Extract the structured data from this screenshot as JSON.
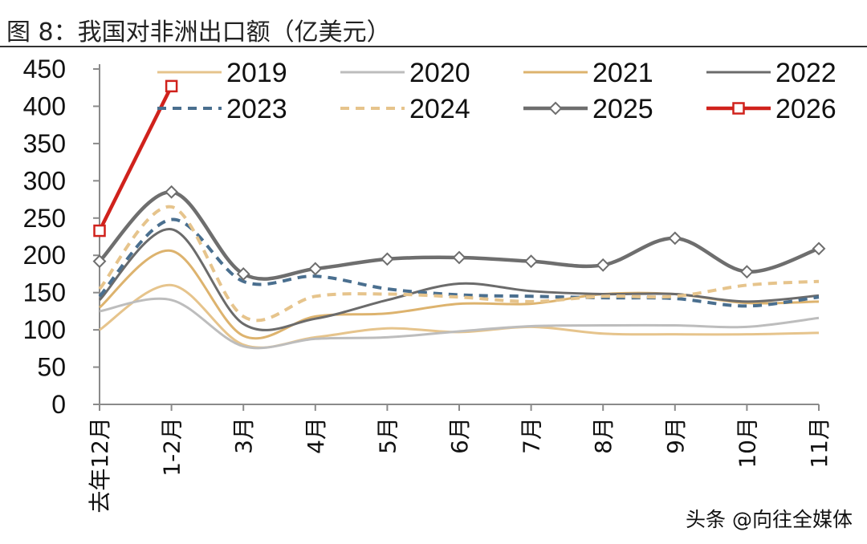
{
  "watermark": "头条 @向往全媒体",
  "chart_data": {
    "type": "line",
    "title": "图 8：我国对非洲出口额（亿美元）",
    "xlabel": "",
    "ylabel": "",
    "ylim": [
      0,
      450
    ],
    "yticks": [
      0,
      50,
      100,
      150,
      200,
      250,
      300,
      350,
      400,
      450
    ],
    "categories": [
      "去年12月",
      "1-2月",
      "3月",
      "4月",
      "5月",
      "6月",
      "7月",
      "8月",
      "9月",
      "10月",
      "11月"
    ],
    "legend_position": "top",
    "series": [
      {
        "name": "2019",
        "color": "#E6C48C",
        "style": "solid",
        "marker": "none",
        "values": [
          100,
          160,
          80,
          90,
          102,
          97,
          104,
          95,
          94,
          94,
          96
        ]
      },
      {
        "name": "2020",
        "color": "#BDBDBD",
        "style": "solid",
        "marker": "none",
        "values": [
          125,
          140,
          78,
          88,
          90,
          98,
          105,
          106,
          106,
          104,
          116
        ]
      },
      {
        "name": "2021",
        "color": "#DDB36E",
        "style": "solid",
        "marker": "none",
        "values": [
          130,
          206,
          92,
          118,
          122,
          135,
          135,
          148,
          148,
          136,
          138
        ]
      },
      {
        "name": "2022",
        "color": "#6B6B6B",
        "style": "solid",
        "marker": "none",
        "values": [
          140,
          235,
          108,
          115,
          140,
          162,
          152,
          148,
          148,
          138,
          146
        ]
      },
      {
        "name": "2023",
        "color": "#4A6F8F",
        "style": "dashed",
        "marker": "none",
        "values": [
          145,
          248,
          165,
          172,
          155,
          147,
          145,
          143,
          142,
          132,
          144
        ]
      },
      {
        "name": "2024",
        "color": "#E6C48C",
        "style": "dashed",
        "marker": "none",
        "values": [
          155,
          265,
          118,
          145,
          148,
          144,
          138,
          145,
          145,
          160,
          165
        ]
      },
      {
        "name": "2025",
        "color": "#6E6E6E",
        "style": "solid",
        "marker": "diamond",
        "values": [
          192,
          285,
          175,
          182,
          195,
          197,
          192,
          187,
          223,
          178,
          209
        ]
      },
      {
        "name": "2026",
        "color": "#D0221C",
        "style": "solid",
        "marker": "square",
        "values": [
          233,
          427,
          null,
          null,
          null,
          null,
          null,
          null,
          null,
          null,
          null
        ]
      }
    ]
  }
}
